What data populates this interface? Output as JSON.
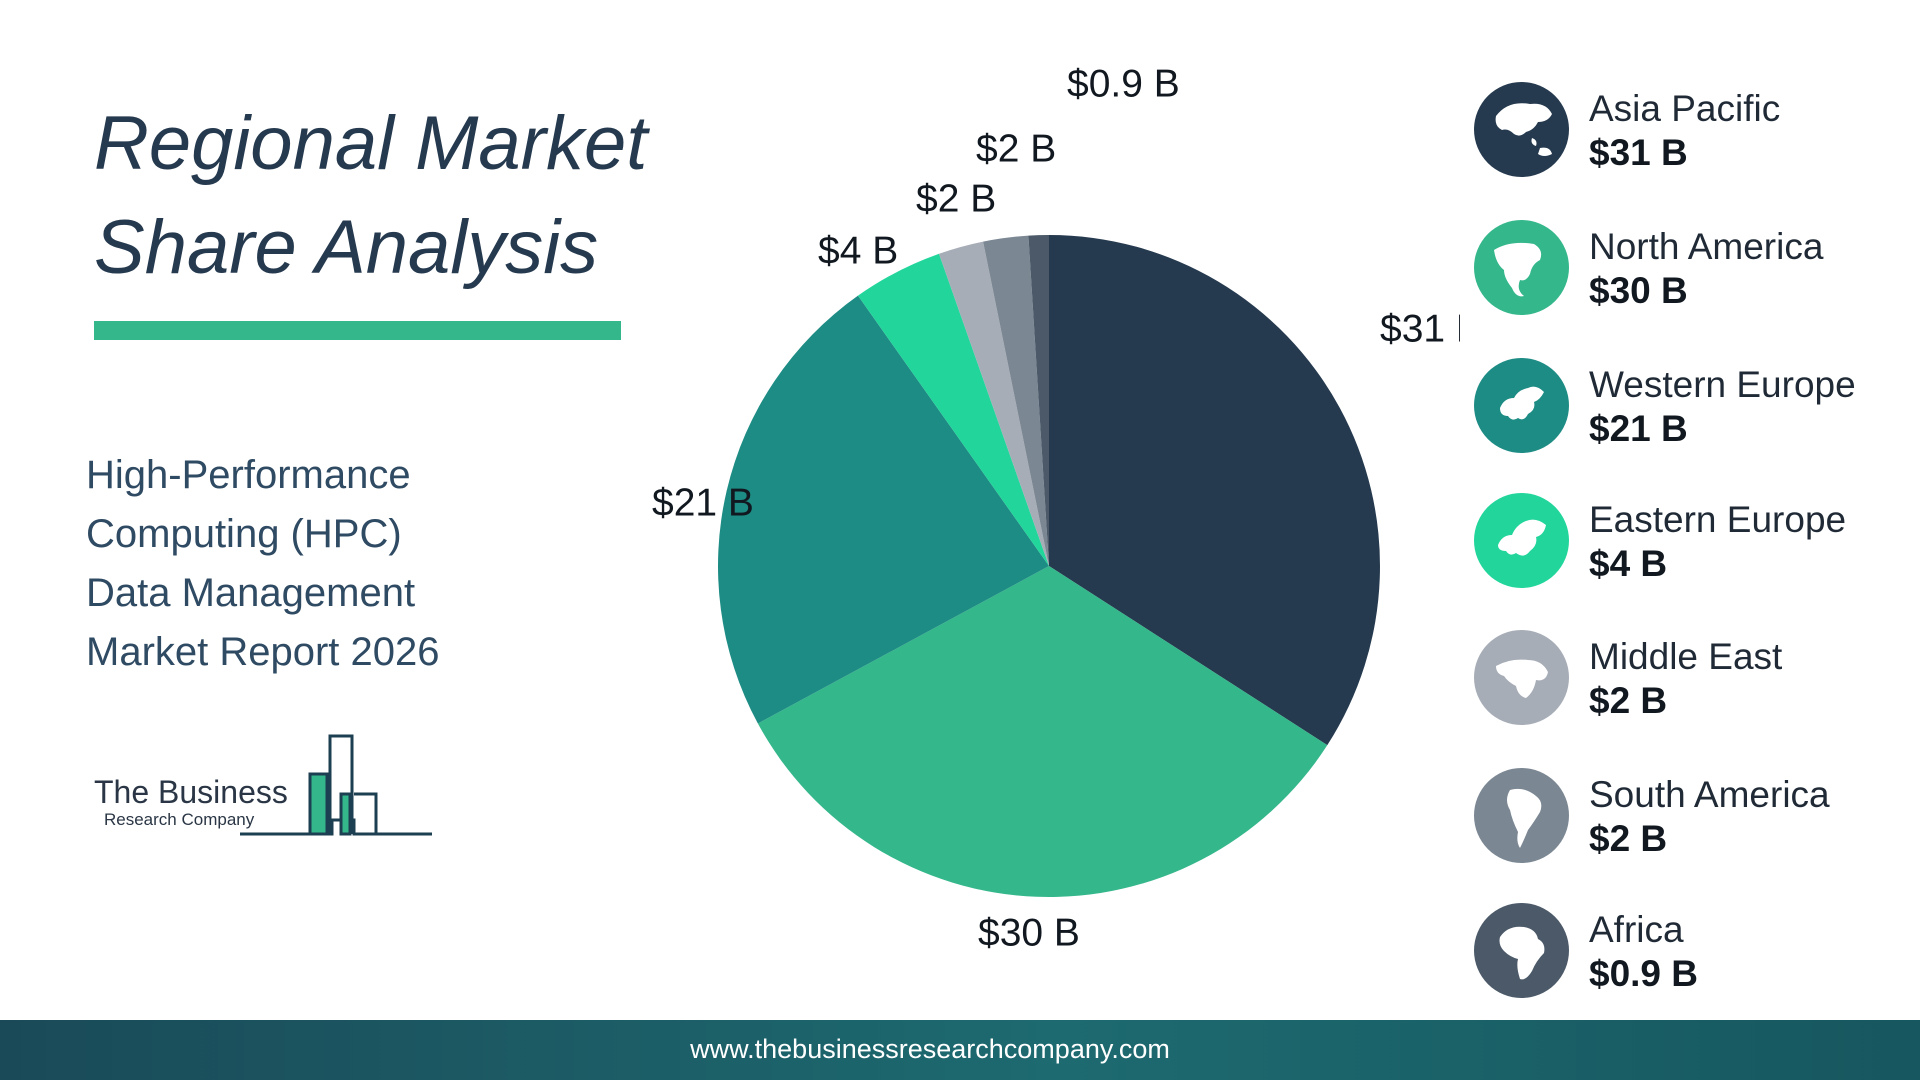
{
  "header": {
    "title_line1": "Regional Market",
    "title_line2": "Share Analysis",
    "subtitle_lines": [
      "High-Performance",
      "Computing (HPC)",
      "Data Management",
      "Market Report 2026"
    ]
  },
  "logo": {
    "name": "The Business",
    "sub": "Research Company"
  },
  "footer": {
    "url": "www.thebusinessresearchcompany.com"
  },
  "colors": {
    "accent": "#34b78a",
    "asia_pacific": "#263a4f",
    "north_america": "#34b78a",
    "western_europe": "#1d8c84",
    "eastern_europe": "#22d69b",
    "middle_east": "#a7adb7",
    "south_america": "#7b8793",
    "africa": "#4b5968"
  },
  "chart_data": {
    "type": "pie",
    "title": "",
    "unit": "$ B",
    "slices": [
      {
        "name": "Asia Pacific",
        "value": 31,
        "label": "$31 B",
        "color": "#263a4f",
        "icon": "asia-map-icon"
      },
      {
        "name": "North America",
        "value": 30,
        "label": "$30 B",
        "color": "#34b78a",
        "icon": "north-america-map-icon"
      },
      {
        "name": "Western Europe",
        "value": 21,
        "label": "$21 B",
        "color": "#1d8c84",
        "icon": "western-europe-map-icon"
      },
      {
        "name": "Eastern Europe",
        "value": 4,
        "label": "$4 B",
        "color": "#22d69b",
        "icon": "eastern-europe-map-icon"
      },
      {
        "name": "Middle East",
        "value": 2,
        "label": "$2 B",
        "color": "#a7adb7",
        "icon": "middle-east-map-icon"
      },
      {
        "name": "South America",
        "value": 2,
        "label": "$2 B",
        "color": "#7b8793",
        "icon": "south-america-map-icon"
      },
      {
        "name": "Africa",
        "value": 0.9,
        "label": "$0.9 B",
        "color": "#4b5968",
        "icon": "africa-map-icon"
      }
    ],
    "legend": "right"
  }
}
